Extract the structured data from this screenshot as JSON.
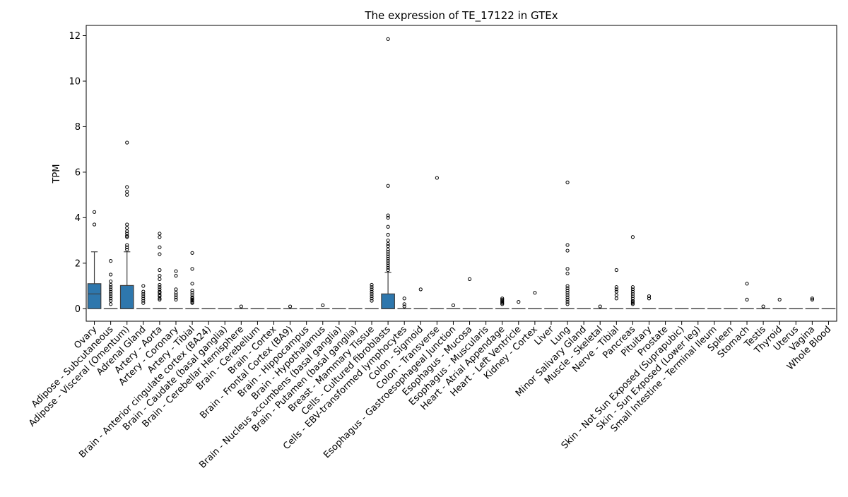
{
  "chart_data": {
    "type": "box",
    "title": "The expression of TE_17122 in GTEx",
    "xlabel": "",
    "ylabel": "TPM",
    "ylim": [
      -0.55,
      12.45
    ],
    "yticks": [
      0,
      2,
      4,
      6,
      8,
      10,
      12
    ],
    "grid": false,
    "legend": "none",
    "box_color": "#2e77ad",
    "categories": [
      "Ovary",
      "Adipose - Subcutaneous",
      "Adipose - Visceral (Omentum)",
      "Adrenal Gland",
      "Artery - Aorta",
      "Artery - Coronary",
      "Artery - Tibial",
      "Brain - Anterior cingulate cortex (BA24)",
      "Brain - Caudate (basal ganglia)",
      "Brain - Cerebellar Hemisphere",
      "Brain - Cerebellum",
      "Brain - Cortex",
      "Brain - Frontal Cortex (BA9)",
      "Brain - Hippocampus",
      "Brain - Hypothalamus",
      "Brain - Nucleus accumbens (basal ganglia)",
      "Brain - Putamen (basal ganglia)",
      "Breast - Mammary Tissue",
      "Cells - Cultured fibroblasts",
      "Cells - EBV-transformed lymphocytes",
      "Colon - Sigmoid",
      "Colon - Transverse",
      "Esophagus - Gastroesophageal Junction",
      "Esophagus - Mucosa",
      "Esophagus - Muscularis",
      "Heart - Atrial Appendage",
      "Heart - Left Ventricle",
      "Kidney - Cortex",
      "Liver",
      "Lung",
      "Minor Salivary Gland",
      "Muscle - Skeletal",
      "Nerve - Tibial",
      "Pancreas",
      "Pituitary",
      "Prostate",
      "Skin - Not Sun Exposed (Suprapubic)",
      "Skin - Sun Exposed (Lower leg)",
      "Small Intestine - Terminal Ileum",
      "Spleen",
      "Stomach",
      "Testis",
      "Thyroid",
      "Uterus",
      "Vagina",
      "Whole Blood"
    ],
    "boxes": [
      {
        "min": 0,
        "q1": 0,
        "median": 0.65,
        "q3": 1.1,
        "max": 2.5,
        "outliers": [
          4.25,
          3.7
        ]
      },
      {
        "min": 0,
        "q1": 0,
        "median": 0,
        "q3": 0,
        "max": 0,
        "outliers": [
          2.1,
          1.5,
          1.2,
          1.05,
          0.95,
          0.85,
          0.75,
          0.65,
          0.55,
          0.45,
          0.35,
          0.2
        ]
      },
      {
        "min": 0,
        "q1": 0,
        "median": 0,
        "q3": 1.02,
        "max": 2.5,
        "outliers": [
          7.3,
          5.35,
          5.15,
          5.0,
          3.7,
          3.55,
          3.4,
          3.3,
          3.2,
          3.15,
          2.8,
          2.7,
          2.6
        ]
      },
      {
        "min": 0,
        "q1": 0,
        "median": 0,
        "q3": 0,
        "max": 0,
        "outliers": [
          1.0,
          0.75,
          0.65,
          0.55,
          0.45,
          0.35,
          0.25
        ]
      },
      {
        "min": 0,
        "q1": 0,
        "median": 0,
        "q3": 0,
        "max": 0,
        "outliers": [
          3.3,
          3.15,
          2.7,
          2.4,
          1.7,
          1.45,
          1.3,
          1.05,
          0.95,
          0.85,
          0.75,
          0.7,
          0.6,
          0.55,
          0.45,
          0.4
        ]
      },
      {
        "min": 0,
        "q1": 0,
        "median": 0,
        "q3": 0,
        "max": 0,
        "outliers": [
          1.65,
          1.45,
          0.85,
          0.7,
          0.6,
          0.5,
          0.4
        ]
      },
      {
        "min": 0,
        "q1": 0,
        "median": 0,
        "q3": 0,
        "max": 0,
        "outliers": [
          2.45,
          1.75,
          1.1,
          0.8,
          0.7,
          0.6,
          0.5,
          0.45,
          0.4,
          0.35,
          0.3,
          0.25
        ]
      },
      {
        "min": 0,
        "q1": 0,
        "median": 0,
        "q3": 0,
        "max": 0,
        "outliers": []
      },
      {
        "min": 0,
        "q1": 0,
        "median": 0,
        "q3": 0,
        "max": 0,
        "outliers": []
      },
      {
        "min": 0,
        "q1": 0,
        "median": 0,
        "q3": 0,
        "max": 0,
        "outliers": [
          0.1
        ]
      },
      {
        "min": 0,
        "q1": 0,
        "median": 0,
        "q3": 0,
        "max": 0,
        "outliers": []
      },
      {
        "min": 0,
        "q1": 0,
        "median": 0,
        "q3": 0,
        "max": 0,
        "outliers": []
      },
      {
        "min": 0,
        "q1": 0,
        "median": 0,
        "q3": 0,
        "max": 0,
        "outliers": [
          0.1
        ]
      },
      {
        "min": 0,
        "q1": 0,
        "median": 0,
        "q3": 0,
        "max": 0,
        "outliers": []
      },
      {
        "min": 0,
        "q1": 0,
        "median": 0,
        "q3": 0,
        "max": 0,
        "outliers": [
          0.15
        ]
      },
      {
        "min": 0,
        "q1": 0,
        "median": 0,
        "q3": 0,
        "max": 0,
        "outliers": []
      },
      {
        "min": 0,
        "q1": 0,
        "median": 0,
        "q3": 0,
        "max": 0,
        "outliers": []
      },
      {
        "min": 0,
        "q1": 0,
        "median": 0,
        "q3": 0,
        "max": 0,
        "outliers": [
          1.05,
          0.95,
          0.85,
          0.75,
          0.65,
          0.55,
          0.45,
          0.35
        ]
      },
      {
        "min": 0,
        "q1": 0,
        "median": 0,
        "q3": 0.65,
        "max": 1.6,
        "outliers": [
          11.85,
          5.4,
          4.1,
          4.0,
          3.6,
          3.25,
          3.0,
          2.85,
          2.75,
          2.6,
          2.5,
          2.4,
          2.3,
          2.2,
          2.1,
          2.0,
          1.9,
          1.8,
          1.7
        ]
      },
      {
        "min": 0,
        "q1": 0,
        "median": 0,
        "q3": 0,
        "max": 0,
        "outliers": [
          0.45,
          0.2,
          0.1
        ]
      },
      {
        "min": 0,
        "q1": 0,
        "median": 0,
        "q3": 0,
        "max": 0,
        "outliers": [
          0.85
        ]
      },
      {
        "min": 0,
        "q1": 0,
        "median": 0,
        "q3": 0,
        "max": 0,
        "outliers": [
          5.75
        ]
      },
      {
        "min": 0,
        "q1": 0,
        "median": 0,
        "q3": 0,
        "max": 0,
        "outliers": [
          0.15
        ]
      },
      {
        "min": 0,
        "q1": 0,
        "median": 0,
        "q3": 0,
        "max": 0,
        "outliers": [
          1.3
        ]
      },
      {
        "min": 0,
        "q1": 0,
        "median": 0,
        "q3": 0,
        "max": 0,
        "outliers": []
      },
      {
        "min": 0,
        "q1": 0,
        "median": 0,
        "q3": 0,
        "max": 0,
        "outliers": [
          0.45,
          0.4,
          0.35,
          0.3,
          0.25,
          0.2
        ]
      },
      {
        "min": 0,
        "q1": 0,
        "median": 0,
        "q3": 0,
        "max": 0,
        "outliers": [
          0.3
        ]
      },
      {
        "min": 0,
        "q1": 0,
        "median": 0,
        "q3": 0,
        "max": 0,
        "outliers": [
          0.7
        ]
      },
      {
        "min": 0,
        "q1": 0,
        "median": 0,
        "q3": 0,
        "max": 0,
        "outliers": []
      },
      {
        "min": 0,
        "q1": 0,
        "median": 0,
        "q3": 0,
        "max": 0,
        "outliers": [
          5.55,
          2.8,
          2.55,
          1.75,
          1.55,
          1.0,
          0.9,
          0.8,
          0.7,
          0.6,
          0.5,
          0.4,
          0.3,
          0.2
        ]
      },
      {
        "min": 0,
        "q1": 0,
        "median": 0,
        "q3": 0,
        "max": 0,
        "outliers": []
      },
      {
        "min": 0,
        "q1": 0,
        "median": 0,
        "q3": 0,
        "max": 0,
        "outliers": [
          0.1
        ]
      },
      {
        "min": 0,
        "q1": 0,
        "median": 0,
        "q3": 0,
        "max": 0,
        "outliers": [
          1.7,
          0.95,
          0.85,
          0.75,
          0.6,
          0.45
        ]
      },
      {
        "min": 0,
        "q1": 0,
        "median": 0,
        "q3": 0,
        "max": 0,
        "outliers": [
          3.15,
          0.95,
          0.85,
          0.75,
          0.65,
          0.55,
          0.45,
          0.35,
          0.3,
          0.25,
          0.2
        ]
      },
      {
        "min": 0,
        "q1": 0,
        "median": 0,
        "q3": 0,
        "max": 0,
        "outliers": [
          0.55,
          0.45
        ]
      },
      {
        "min": 0,
        "q1": 0,
        "median": 0,
        "q3": 0,
        "max": 0,
        "outliers": []
      },
      {
        "min": 0,
        "q1": 0,
        "median": 0,
        "q3": 0,
        "max": 0,
        "outliers": []
      },
      {
        "min": 0,
        "q1": 0,
        "median": 0,
        "q3": 0,
        "max": 0,
        "outliers": []
      },
      {
        "min": 0,
        "q1": 0,
        "median": 0,
        "q3": 0,
        "max": 0,
        "outliers": []
      },
      {
        "min": 0,
        "q1": 0,
        "median": 0,
        "q3": 0,
        "max": 0,
        "outliers": []
      },
      {
        "min": 0,
        "q1": 0,
        "median": 0,
        "q3": 0,
        "max": 0,
        "outliers": [
          1.1,
          0.4
        ]
      },
      {
        "min": 0,
        "q1": 0,
        "median": 0,
        "q3": 0,
        "max": 0,
        "outliers": [
          0.1
        ]
      },
      {
        "min": 0,
        "q1": 0,
        "median": 0,
        "q3": 0,
        "max": 0,
        "outliers": [
          0.4
        ]
      },
      {
        "min": 0,
        "q1": 0,
        "median": 0,
        "q3": 0,
        "max": 0,
        "outliers": []
      },
      {
        "min": 0,
        "q1": 0,
        "median": 0,
        "q3": 0,
        "max": 0,
        "outliers": [
          0.45,
          0.4
        ]
      },
      {
        "min": 0,
        "q1": 0,
        "median": 0,
        "q3": 0,
        "max": 0,
        "outliers": []
      }
    ]
  }
}
